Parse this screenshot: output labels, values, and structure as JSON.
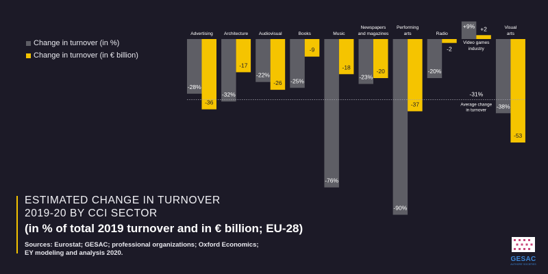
{
  "chart_data": {
    "type": "bar",
    "categories": [
      {
        "lines": [
          "Advertising"
        ]
      },
      {
        "lines": [
          "Architecture"
        ]
      },
      {
        "lines": [
          "Audiovisual"
        ]
      },
      {
        "lines": [
          "Books"
        ]
      },
      {
        "lines": [
          "Music"
        ]
      },
      {
        "lines": [
          "Newspapers",
          "and magazines"
        ]
      },
      {
        "lines": [
          "Performing",
          "arts"
        ]
      },
      {
        "lines": [
          "Radio"
        ]
      },
      {
        "lines": [
          "Video games",
          "industry"
        ]
      },
      {
        "lines": [
          "Visual",
          "arts"
        ]
      }
    ],
    "series": [
      {
        "name": "Change in turnover (in %)",
        "color": "#5e5e65",
        "values": [
          -28,
          -32,
          -22,
          -25,
          -76,
          -23,
          -90,
          -20,
          9,
          -38
        ],
        "labels": [
          "-28%",
          "-32%",
          "-22%",
          "-25%",
          "-76%",
          "-23%",
          "-90%",
          "-20%",
          "+9%",
          "-38%"
        ]
      },
      {
        "name": "Change in turnover (in € billion)",
        "color": "#f5c400",
        "values": [
          -36,
          -17,
          -26,
          -9,
          -18,
          -20,
          -37,
          -2,
          2,
          -53
        ],
        "labels": [
          "-36",
          "-17",
          "-26",
          "-9",
          "-18",
          "-20",
          "-37",
          "-2",
          "+2",
          "-53"
        ]
      }
    ],
    "average": {
      "value": -31,
      "label": "-31%",
      "text_lines": [
        "Average change",
        "in turnover"
      ]
    },
    "legend_position": "top-left"
  },
  "title_line1": "ESTIMATED CHANGE IN TURNOVER",
  "title_line2": "2019-20 BY CCI SECTOR",
  "subtitle": "(in % of total 2019 turnover and in € billion; EU-28)",
  "source_line1": "Sources: Eurostat; GESAC; professional organizations; Oxford Economics;",
  "source_line2": "EY modeling and analysis 2020.",
  "logo": {
    "text": "GESAC",
    "subtext": "AUTHORS' SOCIETIES"
  }
}
